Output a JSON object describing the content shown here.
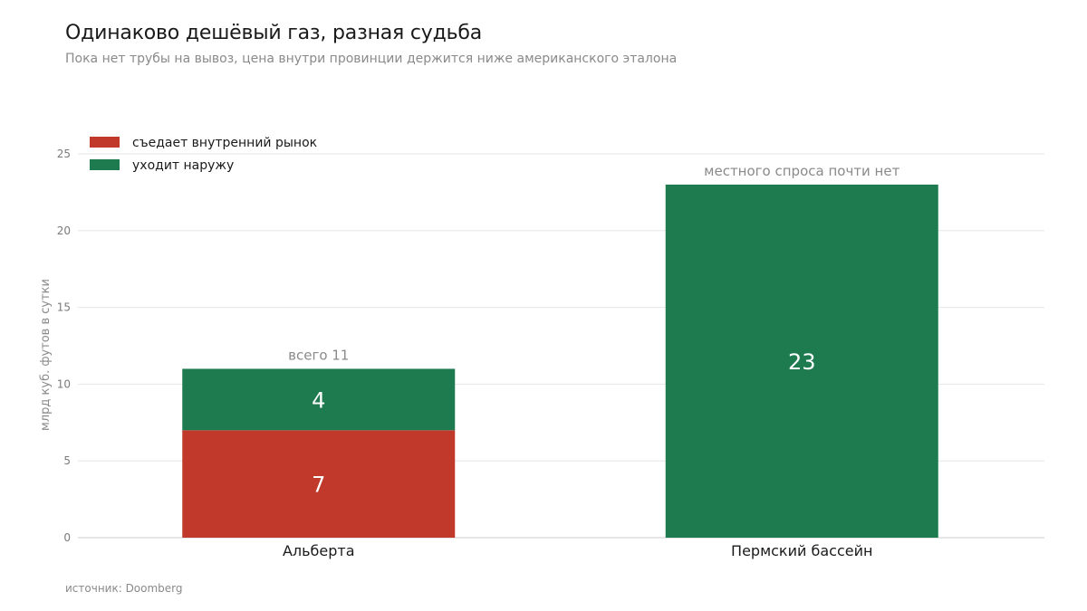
{
  "header": {
    "title": "Одинаково дешёвый газ, разная судьба",
    "subtitle": "Пока нет трубы на вывоз, цена внутри провинции держится ниже американского эталона"
  },
  "footer": {
    "source": "источник: Doomberg"
  },
  "colors": {
    "domestic": "#c0392b",
    "export": "#1e7a4f",
    "grid": "#e6e6e6",
    "axis": "#cccccc"
  },
  "chart_data": {
    "type": "bar",
    "stacked": true,
    "categories": [
      "Альберта",
      "Пермский бассейн"
    ],
    "series": [
      {
        "name": "съедает внутренний рынок",
        "values": [
          7,
          0
        ]
      },
      {
        "name": "уходит наружу",
        "values": [
          4,
          23
        ]
      }
    ],
    "ylabel": "млрд куб. футов в сутки",
    "ylim": [
      0,
      25
    ],
    "yticks": [
      0,
      5,
      10,
      15,
      20,
      25
    ],
    "grid": true,
    "legend": "top-left",
    "annotations": [
      "всего 11",
      "местного спроса почти нет"
    ]
  }
}
